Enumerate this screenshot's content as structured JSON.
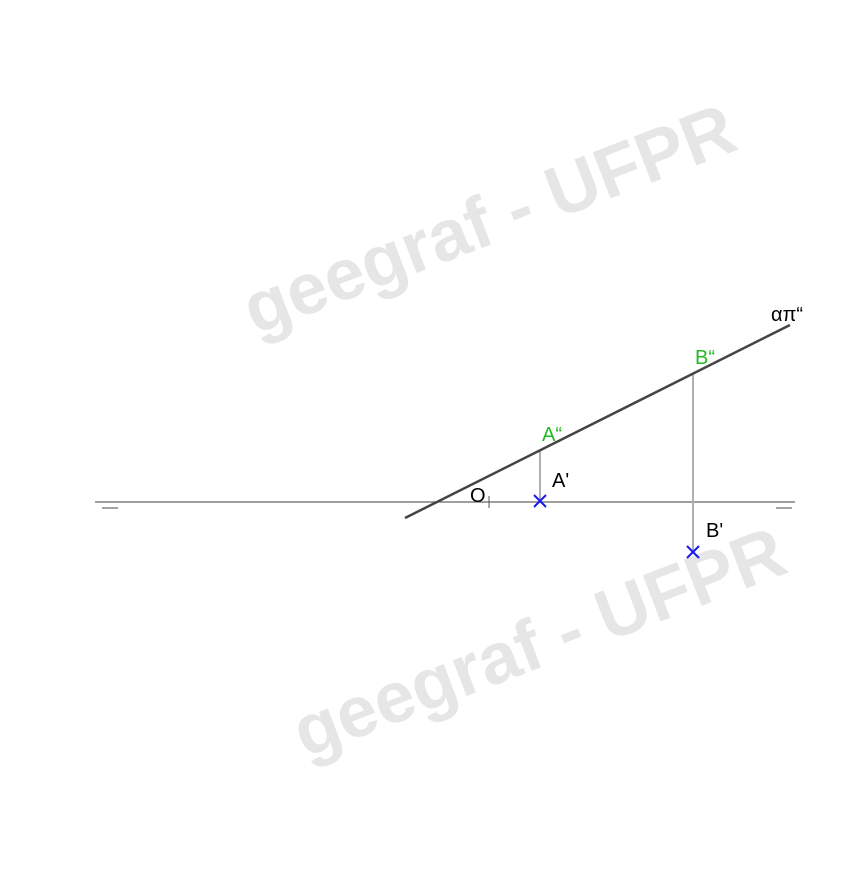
{
  "watermarks": {
    "top": "geegraf - UFPR",
    "bottom": "geegraf - UFPR"
  },
  "labels": {
    "trace": "απ“",
    "b_front": "B“",
    "a_front": "A“",
    "a_top": "A'",
    "b_top": "B'",
    "origin": "O"
  },
  "colors": {
    "front_projection": "#22bb22",
    "top_projection_marker": "#1a1aee",
    "plane_trace": "#444444",
    "ground_line": "#666666",
    "projection_line": "#b0b0b0"
  }
}
